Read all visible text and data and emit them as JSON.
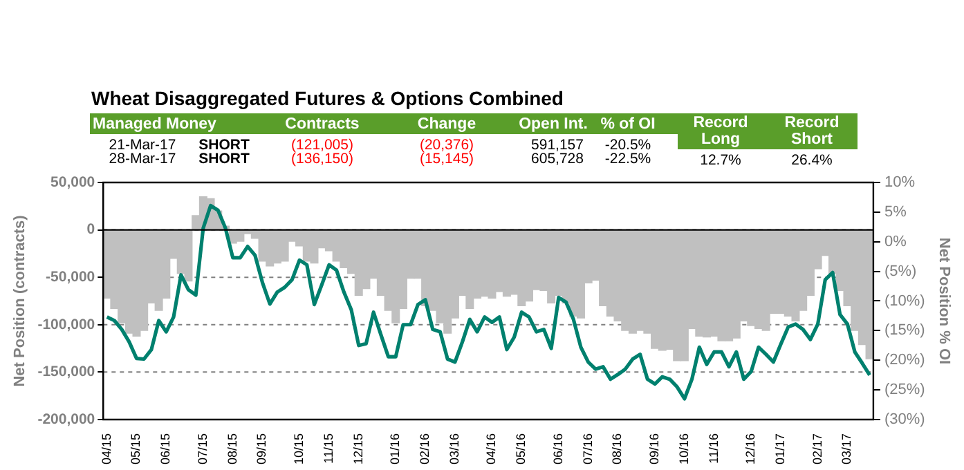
{
  "chart_data": {
    "type": "bar",
    "title": "Wheat Disaggregated Futures & Options Combined",
    "ylabel": "Net Position (contracts)",
    "y2label": "Net Position % OI",
    "annotations": [
      "Managed Money",
      "Contracts",
      "Change",
      "Open Int.",
      "% of OI",
      "Record Long",
      "Record Short",
      "21-Mar-17",
      "SHORT",
      "(121,005)",
      "(20,376)",
      "591,157",
      "-20.5%",
      "28-Mar-17",
      "SHORT",
      "(136,150)",
      "(15,145)",
      "605,728",
      "-22.5%",
      "12.7%",
      "26.4%"
    ],
    "categories": [
      "04/15",
      null,
      null,
      null,
      "05/15",
      null,
      null,
      null,
      "06/15",
      null,
      null,
      null,
      null,
      "07/15",
      null,
      null,
      null,
      "08/15",
      null,
      null,
      null,
      "09/15",
      null,
      null,
      null,
      null,
      "10/15",
      null,
      null,
      null,
      "11/15",
      null,
      null,
      null,
      "12/15",
      null,
      null,
      null,
      null,
      "01/16",
      null,
      null,
      null,
      "02/16",
      null,
      null,
      null,
      "03/16",
      null,
      null,
      null,
      null,
      "04/16",
      null,
      null,
      null,
      "05/16",
      null,
      null,
      null,
      null,
      "06/16",
      null,
      null,
      null,
      "07/16",
      null,
      null,
      null,
      "08/16",
      null,
      null,
      null,
      null,
      "09/16",
      null,
      null,
      null,
      "10/16",
      null,
      null,
      null,
      "11/16",
      null,
      null,
      null,
      null,
      "12/16",
      null,
      null,
      null,
      "01/17",
      null,
      null,
      null,
      null,
      "02/17",
      null,
      null,
      null,
      "03/17",
      null,
      null,
      null
    ],
    "series": [
      {
        "color": "#c0c0c0",
        "values": [
          -72000,
          -83000,
          -98000,
          -109000,
          -112000,
          -106000,
          -77000,
          -85000,
          -72000,
          -30000,
          -46000,
          -54000,
          15000,
          35000,
          33000,
          20000,
          4000,
          -14000,
          -12000,
          -4000,
          -9000,
          -33000,
          -38000,
          -35000,
          -33000,
          -12000,
          -17000,
          -33000,
          -35000,
          -19000,
          -22000,
          -33000,
          -40000,
          -46000,
          -69000,
          -62000,
          -51000,
          -69000,
          -85000,
          -98000,
          -83000,
          -51000,
          -51000,
          -80000,
          -85000,
          -98000,
          -109000,
          -93000,
          -69000,
          -83000,
          -72000,
          -70000,
          -72000,
          -65000,
          -70000,
          -68000,
          -80000,
          -75000,
          -63000,
          -64000,
          -77000,
          -69000,
          -77000,
          -91000,
          -93000,
          -56000,
          -53000,
          -80000,
          -91000,
          -96000,
          -106000,
          -109000,
          -106000,
          -109000,
          -125000,
          -127000,
          -126000,
          -138000,
          -138000,
          -104000,
          -112000,
          -113000,
          -112000,
          -117000,
          -117000,
          -114000,
          -96000,
          -101000,
          -104000,
          -106000,
          -88000,
          -88000,
          -91000,
          -96000,
          -85000,
          -69000,
          -41000,
          -27000,
          -46000,
          -64000,
          -80000,
          -106000,
          -121000,
          -136000
        ]
      },
      {
        "type": "line",
        "color": "#00806e",
        "axis": "y2",
        "values": [
          -12.7,
          -13.3,
          -14.8,
          -16.9,
          -19.7,
          -19.8,
          -18.2,
          -13.3,
          -15.2,
          -12.7,
          -5.6,
          -8.1,
          -9.0,
          2.3,
          6.1,
          5.3,
          2.3,
          -2.7,
          -2.7,
          -0.8,
          -2.3,
          -6.9,
          -10.5,
          -8.5,
          -7.7,
          -6.4,
          -3.1,
          -3.9,
          -10.6,
          -7.3,
          -3.9,
          -4.8,
          -8.5,
          -11.5,
          -17.5,
          -17.2,
          -11.9,
          -15.7,
          -19.4,
          -19.4,
          -14.0,
          -14.0,
          -10.6,
          -9.8,
          -14.8,
          -15.2,
          -19.8,
          -20.3,
          -16.9,
          -13.1,
          -15.2,
          -12.7,
          -13.6,
          -12.7,
          -18.2,
          -16.1,
          -11.9,
          -12.7,
          -15.2,
          -14.8,
          -18.0,
          -9.4,
          -10.2,
          -13.1,
          -17.8,
          -20.3,
          -21.5,
          -21.1,
          -23.2,
          -22.4,
          -21.5,
          -19.8,
          -19.0,
          -23.2,
          -24.0,
          -22.8,
          -23.2,
          -24.5,
          -26.5,
          -23.2,
          -17.8,
          -20.7,
          -18.6,
          -18.6,
          -21.1,
          -18.6,
          -23.2,
          -21.9,
          -17.8,
          -19.0,
          -20.3,
          -17.3,
          -14.4,
          -13.9,
          -14.8,
          -16.5,
          -13.9,
          -6.4,
          -5.2,
          -12.3,
          -13.9,
          -18.6,
          -20.5,
          -22.5
        ]
      }
    ],
    "ylim": [
      -200000,
      50000
    ],
    "yticks": [
      {
        "value": -200000,
        "label": "-200,000"
      },
      {
        "value": -150000,
        "label": "-150,000"
      },
      {
        "value": -100000,
        "label": "-100,000"
      },
      {
        "value": -50000,
        "label": "-50,000"
      },
      0,
      {
        "value": 50000,
        "label": "50,000"
      }
    ],
    "y2lim": [
      -30,
      10
    ],
    "y2ticks": [
      {
        "value": -30,
        "label": "(30%)"
      },
      {
        "value": -25,
        "label": "(25%)"
      },
      {
        "value": -20,
        "label": "(20%)"
      },
      {
        "value": -15,
        "label": "(15%)"
      },
      {
        "value": -10,
        "label": "(10%)"
      },
      {
        "value": -5,
        "label": "(5%)"
      },
      {
        "value": 0,
        "label": "0%"
      },
      {
        "value": 5,
        "label": "5%"
      },
      {
        "value": 10,
        "label": "10%"
      }
    ],
    "grid": "y"
  }
}
